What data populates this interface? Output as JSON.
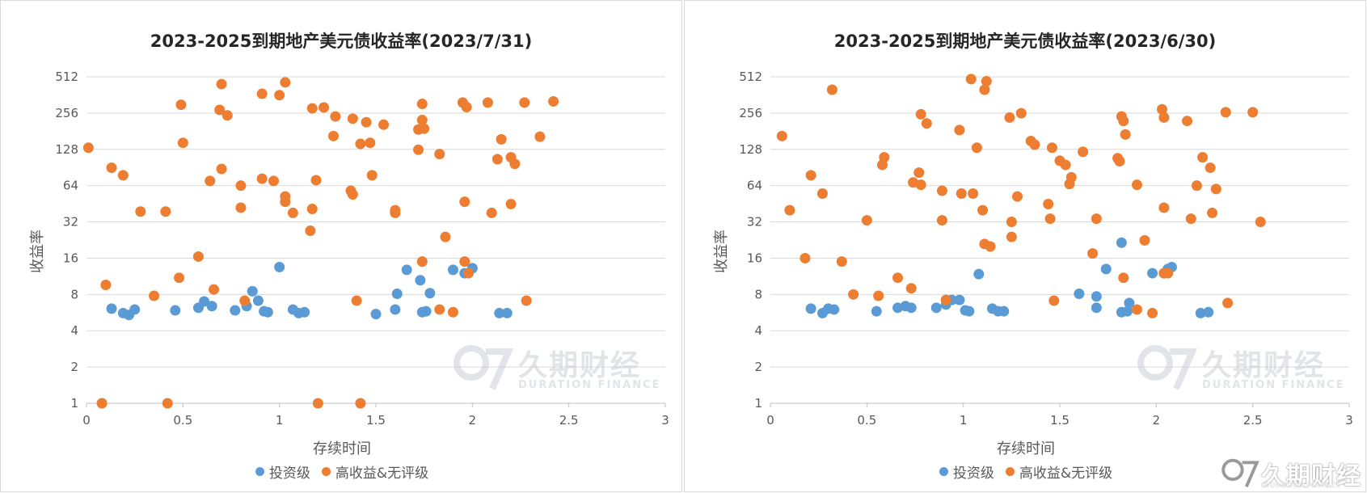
{
  "colors": {
    "investment_grade": "#5b9bd5",
    "high_yield": "#ed7d31",
    "grid": "#d9d9d9",
    "axis": "#bfbfbf",
    "tick_text": "#595959"
  },
  "watermark": {
    "cn": "久期财经",
    "en": "DURATION FINANCE"
  },
  "chart_data": [
    {
      "type": "scatter",
      "title": "2023-2025到期地产美元债收益率(2023/7/31)",
      "xlabel": "存续时间",
      "ylabel": "收益率",
      "xlim": [
        0,
        3
      ],
      "ylim": [
        1,
        512
      ],
      "yscale": "log2",
      "grid": "horizontal",
      "legend_position": "bottom",
      "x_ticks": [
        "0",
        "0.5",
        "1",
        "1.5",
        "2",
        "2.5",
        "3"
      ],
      "y_ticks": [
        "1",
        "2",
        "4",
        "8",
        "16",
        "32",
        "64",
        "128",
        "256",
        "512"
      ],
      "series": [
        {
          "name": "投资级",
          "color_key": "investment_grade",
          "points": [
            [
              0.13,
              6.1
            ],
            [
              0.19,
              5.6
            ],
            [
              0.22,
              5.4
            ],
            [
              0.25,
              6.0
            ],
            [
              0.46,
              5.9
            ],
            [
              0.58,
              6.2
            ],
            [
              0.61,
              7.0
            ],
            [
              0.65,
              6.4
            ],
            [
              0.77,
              5.9
            ],
            [
              0.83,
              6.4
            ],
            [
              0.86,
              8.5
            ],
            [
              0.89,
              7.1
            ],
            [
              0.92,
              5.8
            ],
            [
              0.94,
              5.7
            ],
            [
              1.0,
              13.5
            ],
            [
              1.07,
              6.0
            ],
            [
              1.1,
              5.6
            ],
            [
              1.13,
              5.7
            ],
            [
              1.5,
              5.5
            ],
            [
              1.6,
              6.0
            ],
            [
              1.61,
              8.1
            ],
            [
              1.66,
              12.8
            ],
            [
              1.73,
              10.5
            ],
            [
              1.74,
              5.7
            ],
            [
              1.76,
              5.8
            ],
            [
              1.78,
              8.2
            ],
            [
              1.9,
              12.8
            ],
            [
              1.96,
              12.0
            ],
            [
              2.0,
              13.2
            ],
            [
              2.14,
              5.6
            ],
            [
              2.18,
              5.6
            ]
          ]
        },
        {
          "name": "高收益&无评级",
          "color_key": "high_yield",
          "points": [
            [
              0.01,
              132
            ],
            [
              0.08,
              1.0
            ],
            [
              0.1,
              9.6
            ],
            [
              0.13,
              90
            ],
            [
              0.19,
              78
            ],
            [
              0.28,
              39
            ],
            [
              0.35,
              7.8
            ],
            [
              0.41,
              39
            ],
            [
              0.42,
              1.0
            ],
            [
              0.48,
              11
            ],
            [
              0.49,
              300
            ],
            [
              0.5,
              145
            ],
            [
              0.58,
              16.5
            ],
            [
              0.64,
              70
            ],
            [
              0.66,
              8.8
            ],
            [
              0.69,
              272
            ],
            [
              0.7,
              445
            ],
            [
              0.7,
              88
            ],
            [
              0.73,
              245
            ],
            [
              0.8,
              42
            ],
            [
              0.8,
              64
            ],
            [
              0.82,
              7.1
            ],
            [
              0.91,
              370
            ],
            [
              0.91,
              73
            ],
            [
              0.97,
              70
            ],
            [
              1.0,
              360
            ],
            [
              1.03,
              460
            ],
            [
              1.03,
              52
            ],
            [
              1.03,
              47
            ],
            [
              1.07,
              38
            ],
            [
              1.2,
              1.0
            ],
            [
              1.16,
              27
            ],
            [
              1.17,
              41
            ],
            [
              1.17,
              280
            ],
            [
              1.19,
              71
            ],
            [
              1.23,
              285
            ],
            [
              1.28,
              165
            ],
            [
              1.29,
              240
            ],
            [
              1.37,
              58
            ],
            [
              1.38,
              54
            ],
            [
              1.38,
              230
            ],
            [
              1.4,
              7.1
            ],
            [
              1.42,
              1.0
            ],
            [
              1.42,
              142
            ],
            [
              1.45,
              215
            ],
            [
              1.47,
              145
            ],
            [
              1.48,
              78
            ],
            [
              1.54,
              205
            ],
            [
              1.6,
              38
            ],
            [
              1.6,
              40
            ],
            [
              1.72,
              127
            ],
            [
              1.72,
              187
            ],
            [
              1.74,
              305
            ],
            [
              1.74,
              15
            ],
            [
              1.74,
              224
            ],
            [
              1.75,
              190
            ],
            [
              1.83,
              117
            ],
            [
              1.83,
              6.0
            ],
            [
              1.86,
              24
            ],
            [
              1.9,
              5.7
            ],
            [
              1.95,
              313
            ],
            [
              1.96,
              47
            ],
            [
              1.96,
              15
            ],
            [
              1.97,
              287
            ],
            [
              1.98,
              12
            ],
            [
              2.1,
              38
            ],
            [
              2.13,
              106
            ],
            [
              2.15,
              155
            ],
            [
              2.2,
              45
            ],
            [
              2.2,
              110
            ],
            [
              2.22,
              97
            ],
            [
              2.27,
              313
            ],
            [
              2.28,
              7.1
            ],
            [
              2.35,
              163
            ],
            [
              2.42,
              320
            ],
            [
              2.08,
              313
            ]
          ]
        }
      ]
    },
    {
      "type": "scatter",
      "title": "2023-2025到期地产美元债收益率(2023/6/30)",
      "xlabel": "存续时间",
      "ylabel": "收益率",
      "xlim": [
        0,
        3
      ],
      "ylim": [
        1,
        512
      ],
      "yscale": "log2",
      "grid": "horizontal",
      "legend_position": "bottom",
      "x_ticks": [
        "0",
        "0.5",
        "1",
        "1.5",
        "2",
        "2.5",
        "3"
      ],
      "y_ticks": [
        "1",
        "2",
        "4",
        "8",
        "16",
        "32",
        "64",
        "128",
        "256",
        "512"
      ],
      "series": [
        {
          "name": "投资级",
          "color_key": "investment_grade",
          "points": [
            [
              0.21,
              6.1
            ],
            [
              0.27,
              5.6
            ],
            [
              0.3,
              6.1
            ],
            [
              0.33,
              6.0
            ],
            [
              0.55,
              5.8
            ],
            [
              0.66,
              6.2
            ],
            [
              0.7,
              6.4
            ],
            [
              0.73,
              6.2
            ],
            [
              0.86,
              6.2
            ],
            [
              0.91,
              6.6
            ],
            [
              0.94,
              7.2
            ],
            [
              0.98,
              7.2
            ],
            [
              1.01,
              5.9
            ],
            [
              1.03,
              5.8
            ],
            [
              1.08,
              11.8
            ],
            [
              1.15,
              6.1
            ],
            [
              1.18,
              5.8
            ],
            [
              1.21,
              5.8
            ],
            [
              1.6,
              8.1
            ],
            [
              1.69,
              7.7
            ],
            [
              1.69,
              6.2
            ],
            [
              1.74,
              13.0
            ],
            [
              1.82,
              21.5
            ],
            [
              1.82,
              5.7
            ],
            [
              1.85,
              5.8
            ],
            [
              1.86,
              6.8
            ],
            [
              1.98,
              12.0
            ],
            [
              2.04,
              12.0
            ],
            [
              2.06,
              13.0
            ],
            [
              2.08,
              13.5
            ],
            [
              2.23,
              5.6
            ],
            [
              2.27,
              5.7
            ]
          ]
        },
        {
          "name": "高收益&无评级",
          "color_key": "high_yield",
          "points": [
            [
              0.06,
              165
            ],
            [
              0.1,
              40
            ],
            [
              0.18,
              16
            ],
            [
              0.21,
              78
            ],
            [
              0.27,
              55
            ],
            [
              0.32,
              400
            ],
            [
              0.37,
              15
            ],
            [
              0.43,
              8.0
            ],
            [
              0.5,
              33
            ],
            [
              0.56,
              7.8
            ],
            [
              0.58,
              95
            ],
            [
              0.59,
              110
            ],
            [
              0.66,
              11
            ],
            [
              0.73,
              9.0
            ],
            [
              0.74,
              68
            ],
            [
              0.77,
              82
            ],
            [
              0.78,
              250
            ],
            [
              0.78,
              65
            ],
            [
              0.81,
              210
            ],
            [
              0.89,
              58
            ],
            [
              0.89,
              33
            ],
            [
              0.91,
              7.2
            ],
            [
              0.98,
              185
            ],
            [
              0.99,
              55
            ],
            [
              1.04,
              490
            ],
            [
              1.05,
              55
            ],
            [
              1.07,
              132
            ],
            [
              1.1,
              40
            ],
            [
              1.11,
              400
            ],
            [
              1.12,
              470
            ],
            [
              1.11,
              21
            ],
            [
              1.14,
              20
            ],
            [
              1.24,
              235
            ],
            [
              1.25,
              24
            ],
            [
              1.25,
              32
            ],
            [
              1.28,
              52
            ],
            [
              1.3,
              255
            ],
            [
              1.35,
              150
            ],
            [
              1.37,
              140
            ],
            [
              1.44,
              45
            ],
            [
              1.45,
              34
            ],
            [
              1.46,
              132
            ],
            [
              1.47,
              7.1
            ],
            [
              1.5,
              103
            ],
            [
              1.53,
              95
            ],
            [
              1.55,
              66
            ],
            [
              1.56,
              75
            ],
            [
              1.62,
              122
            ],
            [
              1.67,
              17.5
            ],
            [
              1.69,
              34
            ],
            [
              1.8,
              108
            ],
            [
              1.81,
              102
            ],
            [
              1.82,
              240
            ],
            [
              1.83,
              220
            ],
            [
              1.83,
              11
            ],
            [
              1.84,
              170
            ],
            [
              1.9,
              65
            ],
            [
              1.9,
              6.0
            ],
            [
              1.94,
              22.5
            ],
            [
              1.98,
              5.6
            ],
            [
              2.03,
              275
            ],
            [
              2.04,
              235
            ],
            [
              2.04,
              42
            ],
            [
              2.04,
              12
            ],
            [
              2.06,
              12
            ],
            [
              2.16,
              220
            ],
            [
              2.18,
              34
            ],
            [
              2.21,
              64
            ],
            [
              2.24,
              110
            ],
            [
              2.28,
              90
            ],
            [
              2.29,
              38
            ],
            [
              2.31,
              60
            ],
            [
              2.36,
              260
            ],
            [
              2.37,
              6.8
            ],
            [
              2.5,
              260
            ],
            [
              2.54,
              32
            ]
          ]
        }
      ]
    }
  ]
}
